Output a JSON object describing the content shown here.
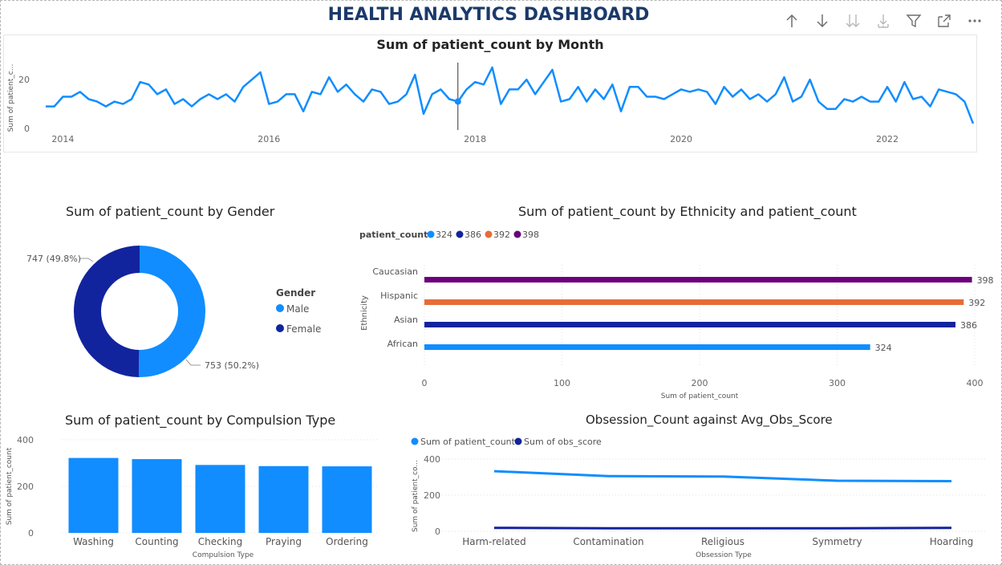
{
  "dashboard": {
    "title": "HEALTH ANALYTICS DASHBOARD"
  },
  "toolbar": {
    "icons": [
      "arrow-up-icon",
      "arrow-down-icon",
      "double-arrow-down-icon",
      "expand-hierarchy-icon",
      "filter-icon",
      "focus-mode-icon",
      "more-options-icon"
    ]
  },
  "colors": {
    "accent": "#118DFF",
    "navy": "#12239E",
    "orange": "#E66C37",
    "purple": "#6B007B",
    "title": "#1b3a6b"
  },
  "chart_data": [
    {
      "id": "month",
      "type": "line",
      "title": "Sum of patient_count by Month",
      "ylabel": "Sum of patient_c...",
      "xlabel": "",
      "ylim": [
        0,
        25
      ],
      "yticks": [
        "0",
        "20"
      ],
      "xticks": [
        "2014",
        "2016",
        "2018",
        "2020",
        "2022"
      ],
      "x_start": "2013-11",
      "x_end": "2022-11",
      "highlighted_point": "2017-11",
      "series": [
        {
          "values": [
            9,
            9,
            13,
            13,
            15,
            12,
            11,
            9,
            11,
            10,
            12,
            19,
            18,
            14,
            16,
            10,
            12,
            9,
            12,
            14,
            12,
            14,
            11,
            17,
            20,
            23,
            10,
            11,
            14,
            14,
            7,
            15,
            14,
            21,
            15,
            18,
            14,
            11,
            16,
            15,
            10,
            11,
            14,
            22,
            6,
            14,
            16,
            12,
            11,
            16,
            19,
            18,
            25,
            10,
            16,
            16,
            20,
            14,
            19,
            24,
            11,
            12,
            17,
            11,
            16,
            12,
            18,
            7,
            17,
            17,
            13,
            13,
            12,
            14,
            16,
            15,
            16,
            15,
            10,
            17,
            13,
            16,
            12,
            14,
            11,
            14,
            21,
            11,
            13,
            20,
            11,
            8,
            8,
            12,
            11,
            13,
            11,
            11,
            17,
            11,
            19,
            12,
            13,
            9,
            16,
            15,
            14,
            11,
            2
          ]
        }
      ]
    },
    {
      "id": "gender",
      "type": "pie",
      "title": "Sum of patient_count by Gender",
      "legend_title": "Gender",
      "categories": [
        "Male",
        "Female"
      ],
      "values": [
        753,
        747
      ],
      "labels": [
        "753 (50.2%)",
        "747 (49.8%)"
      ],
      "colors": [
        "#118DFF",
        "#12239E"
      ]
    },
    {
      "id": "ethnicity",
      "type": "bar",
      "orientation": "horizontal",
      "title": "Sum of patient_count by Ethnicity and patient_count",
      "legend_title": "patient_count",
      "legend": [
        "324",
        "386",
        "392",
        "398"
      ],
      "legend_colors": [
        "#118DFF",
        "#12239E",
        "#E66C37",
        "#6B007B"
      ],
      "ylabel": "Ethnicity",
      "xlabel": "Sum of patient_count",
      "xlim": [
        0,
        400
      ],
      "xticks": [
        "0",
        "100",
        "200",
        "300",
        "400"
      ],
      "categories": [
        "Caucasian",
        "Hispanic",
        "Asian",
        "African"
      ],
      "values": [
        398,
        392,
        386,
        324
      ],
      "bar_colors": [
        "#6B007B",
        "#E66C37",
        "#12239E",
        "#118DFF"
      ]
    },
    {
      "id": "compulsion",
      "type": "bar",
      "title": "Sum of patient_count by Compulsion Type",
      "ylabel": "Sum of patient_count",
      "xlabel": "Compulsion Type",
      "ylim": [
        0,
        400
      ],
      "yticks": [
        "0",
        "200",
        "400"
      ],
      "categories": [
        "Washing",
        "Counting",
        "Checking",
        "Praying",
        "Ordering"
      ],
      "values": [
        322,
        317,
        292,
        287,
        286
      ]
    },
    {
      "id": "obsession",
      "type": "line",
      "title": "Obsession_Count against Avg_Obs_Score",
      "ylabel": "Sum of patient_co...",
      "xlabel": "Obsession Type",
      "ylim": [
        0,
        400
      ],
      "yticks": [
        "0",
        "200",
        "400"
      ],
      "categories": [
        "Harm-related",
        "Contamination",
        "Religious",
        "Symmetry",
        "Hoarding"
      ],
      "series": [
        {
          "name": "Sum of patient_count",
          "color": "#118DFF",
          "values": [
            333,
            306,
            303,
            280,
            278
          ]
        },
        {
          "name": "Sum of obs_score",
          "color": "#12239E",
          "values": [
            19,
            17,
            17,
            17,
            19
          ]
        }
      ]
    }
  ]
}
